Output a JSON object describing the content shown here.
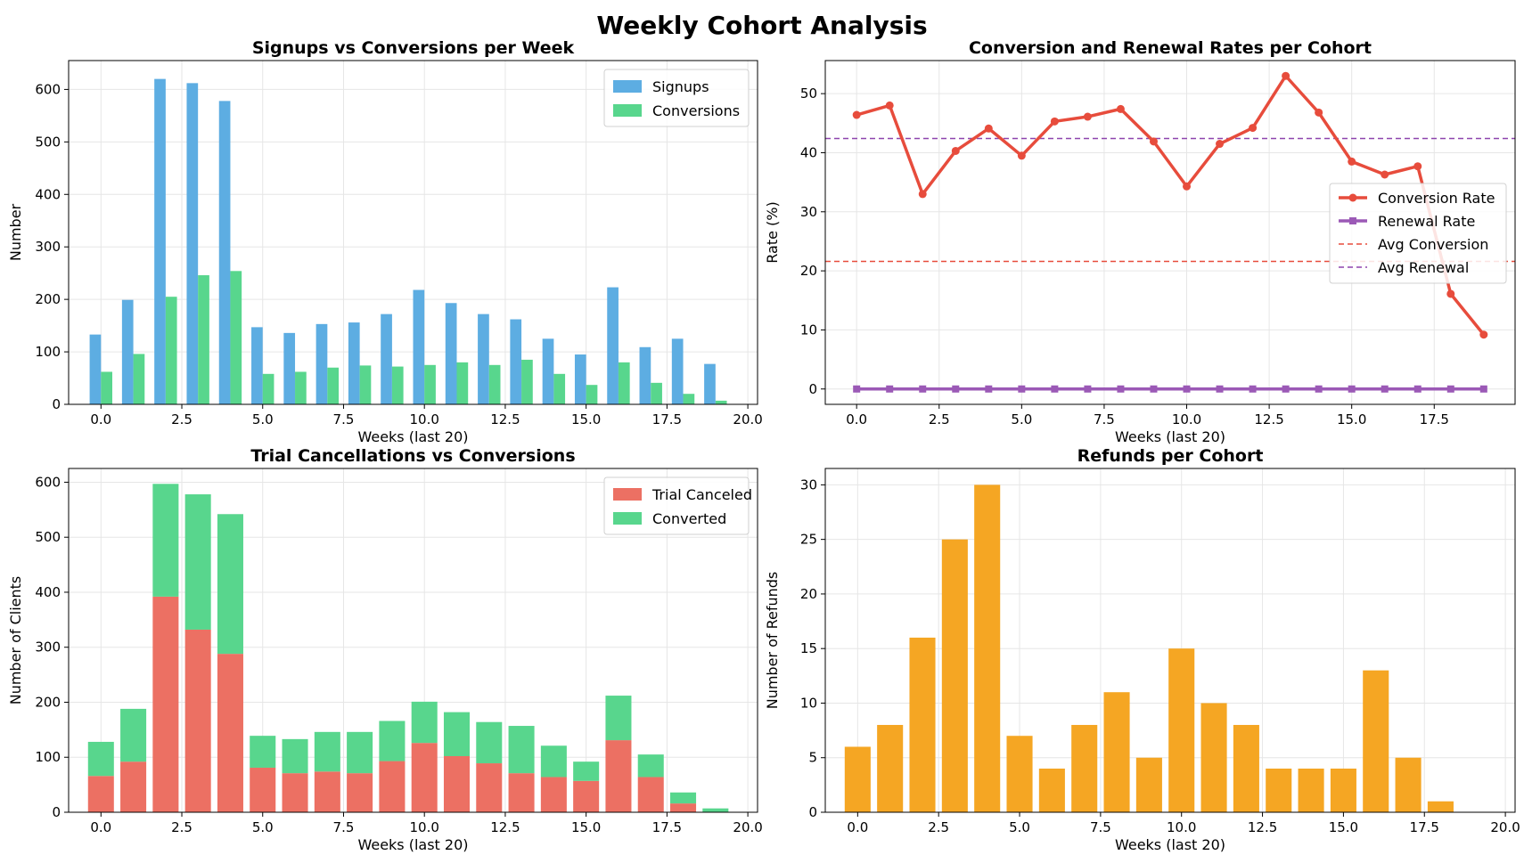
{
  "figure": {
    "title": "Weekly Cohort Analysis"
  },
  "chart_data": [
    {
      "id": "signups",
      "type": "bar",
      "title": "Signups vs Conversions per Week",
      "xlabel": "Weeks (last 20)",
      "ylabel": "Number",
      "xlim": [
        -1,
        20.3
      ],
      "ylim": [
        0,
        655
      ],
      "xticks": [
        0,
        2.5,
        5,
        7.5,
        10,
        12.5,
        15,
        17.5,
        20
      ],
      "xtick_labels": [
        "0.0",
        "2.5",
        "5.0",
        "7.5",
        "10.0",
        "12.5",
        "15.0",
        "17.5",
        "20.0"
      ],
      "yticks": [
        0,
        100,
        200,
        300,
        400,
        500,
        600
      ],
      "grid": true,
      "legend": "top-right",
      "x": [
        0,
        1,
        2,
        3,
        4,
        5,
        6,
        7,
        8,
        9,
        10,
        11,
        12,
        13,
        14,
        15,
        16,
        17,
        18,
        19
      ],
      "series": [
        {
          "name": "Signups",
          "color": "#5DADE2",
          "values": [
            133,
            199,
            620,
            612,
            578,
            147,
            136,
            153,
            156,
            172,
            218,
            193,
            172,
            162,
            125,
            95,
            223,
            109,
            125,
            77
          ]
        },
        {
          "name": "Conversions",
          "color": "#58D68D",
          "values": [
            62,
            96,
            205,
            246,
            254,
            58,
            62,
            70,
            74,
            72,
            75,
            80,
            75,
            85,
            58,
            37,
            80,
            41,
            20,
            7
          ]
        }
      ]
    },
    {
      "id": "rates",
      "type": "line",
      "title": "Conversion and Renewal Rates per Cohort",
      "xlabel": "Weeks (last 20)",
      "ylabel": "Rate (%)",
      "xlim": [
        -0.95,
        19.95
      ],
      "ylim": [
        -2.6,
        55.6
      ],
      "xticks": [
        0,
        2.5,
        5,
        7.5,
        10,
        12.5,
        15,
        17.5
      ],
      "xtick_labels": [
        "0.0",
        "2.5",
        "5.0",
        "7.5",
        "10.0",
        "12.5",
        "15.0",
        "17.5"
      ],
      "yticks": [
        0,
        10,
        20,
        30,
        40,
        50
      ],
      "grid": true,
      "legend": "center-right",
      "x": [
        0,
        1,
        2,
        3,
        4,
        5,
        6,
        7,
        8,
        9,
        10,
        11,
        12,
        13,
        14,
        15,
        16,
        17,
        18,
        19
      ],
      "series": [
        {
          "name": "Conversion Rate",
          "color": "#E74C3C",
          "marker": "circle",
          "values": [
            46.4,
            48.0,
            33.0,
            40.3,
            44.1,
            39.5,
            45.3,
            46.1,
            47.4,
            41.9,
            34.3,
            41.5,
            44.2,
            53.0,
            46.8,
            38.5,
            36.3,
            37.7,
            16.1,
            9.2
          ]
        },
        {
          "name": "Renewal Rate",
          "color": "#9B59B6",
          "marker": "square",
          "values": [
            0,
            0,
            0,
            0,
            0,
            0,
            0,
            0,
            0,
            0,
            0,
            0,
            0,
            0,
            0,
            0,
            0,
            0,
            0,
            0
          ]
        }
      ],
      "reference_lines": [
        {
          "name": "Avg Conversion",
          "value": 21.6,
          "color": "#E74C3C"
        },
        {
          "name": "Avg Renewal",
          "value": 42.4,
          "color": "#8E44AD"
        }
      ]
    },
    {
      "id": "trials",
      "type": "bar",
      "stacked": true,
      "title": "Trial Cancellations vs Conversions",
      "xlabel": "Weeks (last 20)",
      "ylabel": "Number of Clients",
      "xlim": [
        -1,
        20.3
      ],
      "ylim": [
        0,
        625
      ],
      "xticks": [
        0,
        2.5,
        5,
        7.5,
        10,
        12.5,
        15,
        17.5,
        20
      ],
      "xtick_labels": [
        "0.0",
        "2.5",
        "5.0",
        "7.5",
        "10.0",
        "12.5",
        "15.0",
        "17.5",
        "20.0"
      ],
      "yticks": [
        0,
        100,
        200,
        300,
        400,
        500,
        600
      ],
      "grid": true,
      "legend": "top-right",
      "x": [
        0,
        1,
        2,
        3,
        4,
        5,
        6,
        7,
        8,
        9,
        10,
        11,
        12,
        13,
        14,
        15,
        16,
        17,
        18,
        19
      ],
      "series": [
        {
          "name": "Trial Canceled",
          "color": "#EC7063",
          "values": [
            66,
            92,
            392,
            332,
            288,
            81,
            71,
            74,
            71,
            93,
            126,
            102,
            89,
            71,
            64,
            57,
            131,
            64,
            16,
            0
          ]
        },
        {
          "name": "Converted",
          "color": "#58D68D",
          "values": [
            62,
            96,
            205,
            246,
            254,
            58,
            62,
            72,
            75,
            73,
            75,
            80,
            75,
            86,
            57,
            35,
            81,
            41,
            20,
            7
          ]
        }
      ]
    },
    {
      "id": "refunds",
      "type": "bar",
      "title": "Refunds per Cohort",
      "xlabel": "Weeks (last 20)",
      "ylabel": "Number of Refunds",
      "xlim": [
        -1,
        20.3
      ],
      "ylim": [
        0,
        31.5
      ],
      "xticks": [
        0,
        2.5,
        5,
        7.5,
        10,
        12.5,
        15,
        17.5,
        20
      ],
      "xtick_labels": [
        "0.0",
        "2.5",
        "5.0",
        "7.5",
        "10.0",
        "12.5",
        "15.0",
        "17.5",
        "20.0"
      ],
      "yticks": [
        0,
        5,
        10,
        15,
        20,
        25,
        30
      ],
      "grid": true,
      "x": [
        0,
        1,
        2,
        3,
        4,
        5,
        6,
        7,
        8,
        9,
        10,
        11,
        12,
        13,
        14,
        15,
        16,
        17,
        18,
        19
      ],
      "series": [
        {
          "color": "#F5A623",
          "values": [
            6,
            8,
            16,
            25,
            30,
            7,
            4,
            8,
            11,
            5,
            15,
            10,
            8,
            4,
            4,
            4,
            13,
            5,
            1,
            0
          ]
        }
      ]
    }
  ]
}
